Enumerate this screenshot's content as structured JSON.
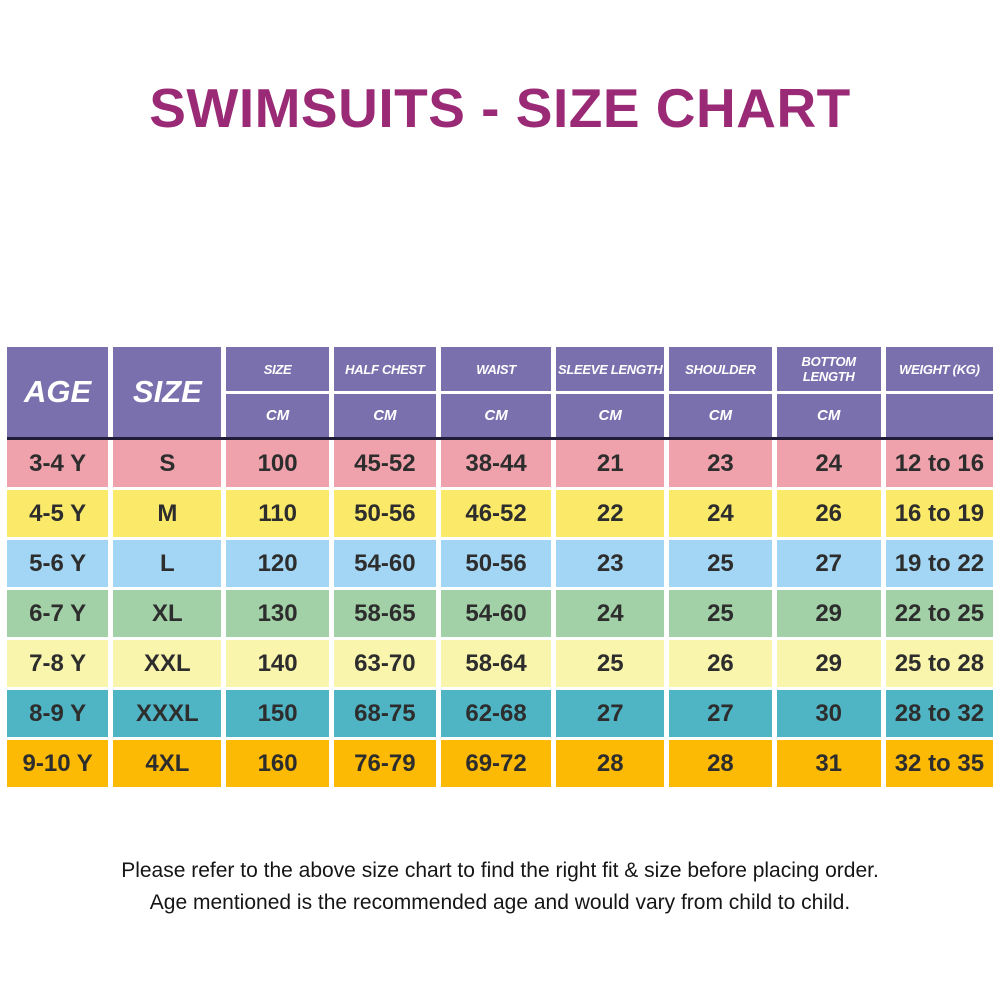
{
  "title": {
    "text": "SWIMSUITS - SIZE CHART",
    "color": "#9B2A76"
  },
  "chart_data": {
    "type": "table",
    "title": "SWIMSUITS - SIZE CHART",
    "columns": [
      "AGE",
      "SIZE",
      "SIZE CM",
      "HALF CHEST CM",
      "WAIST CM",
      "SLEEVE LENGTH CM",
      "SHOULDER CM",
      "BOTTOM LENGTH CM",
      "WEIGHT (KG)"
    ],
    "header": {
      "age_label": "AGE",
      "size_label": "SIZE",
      "bg_color": "#7B70AE",
      "text_color": "#FFFFFF",
      "divider_color": "#211D38",
      "measure_columns": [
        {
          "label": "SIZE",
          "unit": "CM"
        },
        {
          "label": "HALF CHEST",
          "unit": "CM"
        },
        {
          "label": "WAIST",
          "unit": "CM"
        },
        {
          "label": "SLEEVE LENGTH",
          "unit": "CM"
        },
        {
          "label": "SHOULDER",
          "unit": "CM"
        },
        {
          "label": "BOTTOM LENGTH",
          "unit": "CM"
        },
        {
          "label": "WEIGHT (KG)",
          "unit": ""
        }
      ]
    },
    "rows": [
      {
        "age": "3-4 Y",
        "size": "S",
        "size_cm": "100",
        "half_chest": "45-52",
        "waist": "38-44",
        "sleeve_length": "21",
        "shoulder": "23",
        "bottom_length": "24",
        "weight": "12 to 16",
        "bg": "#F0A2AC"
      },
      {
        "age": "4-5 Y",
        "size": "M",
        "size_cm": "110",
        "half_chest": "50-56",
        "waist": "46-52",
        "sleeve_length": "22",
        "shoulder": "24",
        "bottom_length": "26",
        "weight": "16 to 19",
        "bg": "#FBE96A"
      },
      {
        "age": "5-6 Y",
        "size": "L",
        "size_cm": "120",
        "half_chest": "54-60",
        "waist": "50-56",
        "sleeve_length": "23",
        "shoulder": "25",
        "bottom_length": "27",
        "weight": "19 to 22",
        "bg": "#A2D6F4"
      },
      {
        "age": "6-7 Y",
        "size": "XL",
        "size_cm": "130",
        "half_chest": "58-65",
        "waist": "54-60",
        "sleeve_length": "24",
        "shoulder": "25",
        "bottom_length": "29",
        "weight": "22 to 25",
        "bg": "#A3D1A7"
      },
      {
        "age": "7-8 Y",
        "size": "XXL",
        "size_cm": "140",
        "half_chest": "63-70",
        "waist": "58-64",
        "sleeve_length": "25",
        "shoulder": "26",
        "bottom_length": "29",
        "weight": "25 to 28",
        "bg": "#F9F5AC"
      },
      {
        "age": "8-9 Y",
        "size": "XXXL",
        "size_cm": "150",
        "half_chest": "68-75",
        "waist": "62-68",
        "sleeve_length": "27",
        "shoulder": "27",
        "bottom_length": "30",
        "weight": "28 to 32",
        "bg": "#4FB5C5"
      },
      {
        "age": "9-10 Y",
        "size": "4XL",
        "size_cm": "160",
        "half_chest": "76-79",
        "waist": "69-72",
        "sleeve_length": "28",
        "shoulder": "28",
        "bottom_length": "31",
        "weight": "32 to 35",
        "bg": "#FCBA04"
      }
    ]
  },
  "footer": {
    "line1": "Please refer to the above size chart to find the right fit & size before placing order.",
    "line2": "Age mentioned is the recommended age and would vary from child to child."
  }
}
